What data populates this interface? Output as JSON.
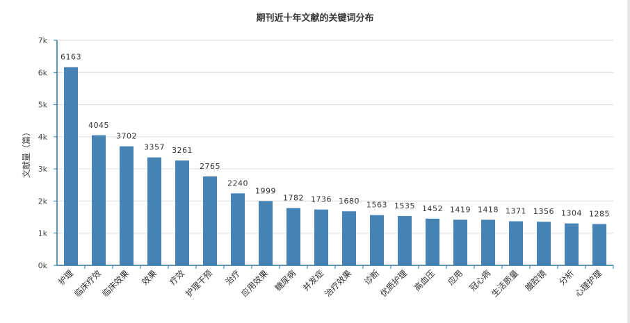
{
  "chart_data": {
    "type": "bar",
    "title": "期刊近十年文献的关键词分布",
    "ylabel": "文献量（篇）",
    "xlabel": "",
    "ylim": [
      0,
      7000
    ],
    "yticks": [
      "0k",
      "1k",
      "2k",
      "3k",
      "4k",
      "5k",
      "6k",
      "7k"
    ],
    "grid": true,
    "bar_color": "#4682b4",
    "categories": [
      "护理",
      "临床疗效",
      "临床效果",
      "效果",
      "疗效",
      "护理干预",
      "治疗",
      "应用效果",
      "糖尿病",
      "并发症",
      "治疗效果",
      "诊断",
      "优质护理",
      "高血压",
      "应用",
      "冠心病",
      "生活质量",
      "腹腔镜",
      "分析",
      "心理护理"
    ],
    "values": [
      6163,
      4045,
      3702,
      3357,
      3261,
      2765,
      2240,
      1999,
      1782,
      1736,
      1680,
      1563,
      1535,
      1452,
      1419,
      1418,
      1371,
      1356,
      1304,
      1285
    ]
  }
}
